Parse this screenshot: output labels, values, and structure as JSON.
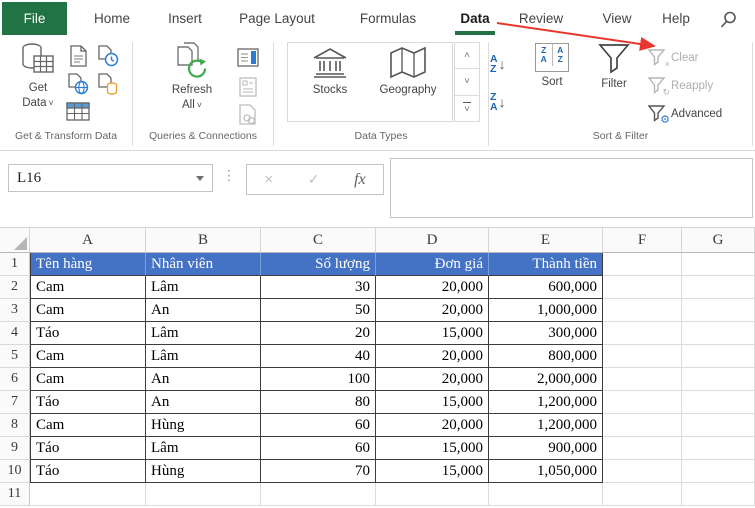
{
  "tab_bar": {
    "tabs": [
      "File",
      "Home",
      "Insert",
      "Page Layout",
      "Formulas",
      "Data",
      "Review",
      "View",
      "Help"
    ],
    "selected_tab": "Data"
  },
  "ribbon": {
    "groups": {
      "get_transform": {
        "label": "Get & Transform Data",
        "get_data_line1": "Get",
        "get_data_line2": "Data"
      },
      "queries": {
        "label": "Queries & Connections",
        "refresh_line1": "Refresh",
        "refresh_line2": "All"
      },
      "data_types": {
        "label": "Data Types",
        "stocks": "Stocks",
        "geography": "Geography"
      },
      "sort_filter": {
        "label": "Sort & Filter",
        "sort": "Sort",
        "filter": "Filter",
        "clear": "Clear",
        "reapply": "Reapply",
        "advanced": "Advanced"
      }
    }
  },
  "formula_bar": {
    "name_box_value": "L16",
    "formula_value": "",
    "fx_glyph": "fx",
    "cancel_glyph": "×",
    "enter_glyph": "✓",
    "ellipsis_glyph": "⋮"
  },
  "glyphs": {
    "chevron_down": "˅",
    "gallery_up": "˄",
    "gallery_down": "˅",
    "sort_a": "A",
    "sort_z": "Z",
    "arrow_down": "↓",
    "gear": "⚙",
    "clear_x": "×",
    "reapply_arrow": "↻"
  },
  "sheet": {
    "column_headers": [
      "A",
      "B",
      "C",
      "D",
      "E",
      "F",
      "G"
    ],
    "row_headers": [
      "1",
      "2",
      "3",
      "4",
      "5",
      "6",
      "7",
      "8",
      "9",
      "10",
      "11"
    ],
    "table": {
      "columns": [
        "Tên hàng",
        "Nhân viên",
        "Số lượng",
        "Đơn giá",
        "Thành tiền"
      ],
      "align": [
        "left",
        "left",
        "right",
        "right",
        "right"
      ],
      "rows": [
        [
          "Cam",
          "Lâm",
          "30",
          "20,000",
          "600,000"
        ],
        [
          "Cam",
          "An",
          "50",
          "20,000",
          "1,000,000"
        ],
        [
          "Táo",
          "Lâm",
          "20",
          "15,000",
          "300,000"
        ],
        [
          "Cam",
          "Lâm",
          "40",
          "20,000",
          "800,000"
        ],
        [
          "Cam",
          "An",
          "100",
          "20,000",
          "2,000,000"
        ],
        [
          "Táo",
          "An",
          "80",
          "15,000",
          "1,200,000"
        ],
        [
          "Cam",
          "Hùng",
          "60",
          "20,000",
          "1,200,000"
        ],
        [
          "Táo",
          "Lâm",
          "60",
          "15,000",
          "900,000"
        ],
        [
          "Táo",
          "Hùng",
          "70",
          "15,000",
          "1,050,000"
        ]
      ]
    }
  },
  "colors": {
    "excel_green": "#217346",
    "table_header_fill": "#4472c4",
    "table_header_text": "#ffffff",
    "annotation_arrow": "#e8362c",
    "disabled_text": "#b0aeab"
  }
}
